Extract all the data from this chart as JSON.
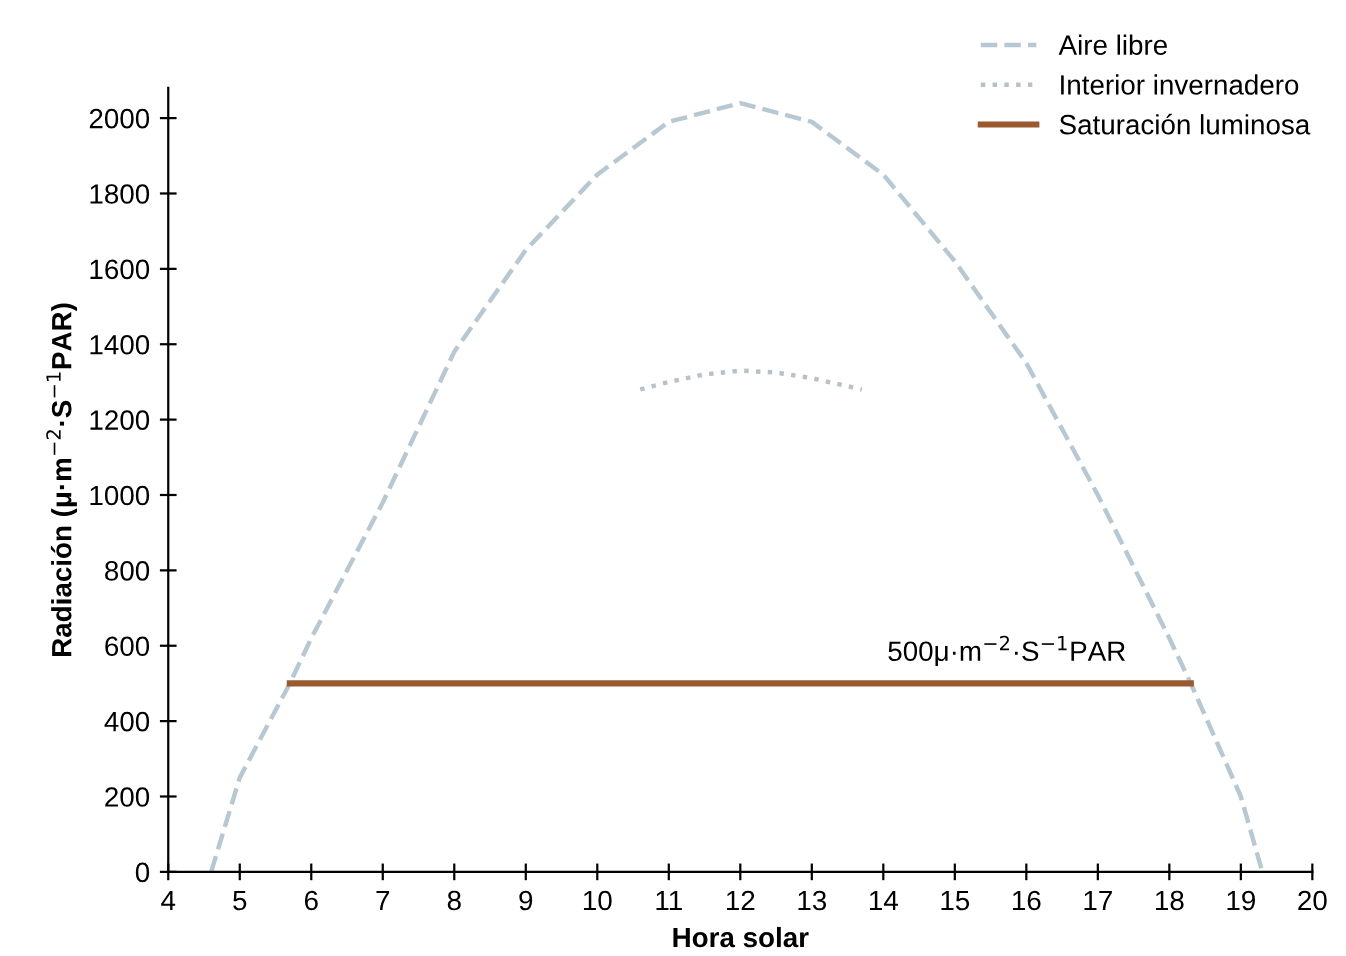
{
  "chart_data": {
    "type": "line",
    "xlabel": "Hora solar",
    "ylabel": "Radiación (μ·m$^{−2}$·S$^{−1}$PAR)",
    "xlim": [
      4,
      20
    ],
    "xticks": [
      4,
      5,
      6,
      7,
      8,
      9,
      10,
      11,
      12,
      13,
      14,
      15,
      16,
      17,
      18,
      19,
      20
    ],
    "ylim": [
      0,
      2080
    ],
    "yticks": [
      0,
      200,
      400,
      600,
      800,
      1000,
      1200,
      1400,
      1600,
      1800,
      2000
    ],
    "grid": false,
    "legend": "top right",
    "marker": "none",
    "series": [
      {
        "name": "Aire libre",
        "color": "#b8c8d2",
        "line_style": "dashed",
        "x": [
          4.6,
          5,
          5.7,
          6,
          7,
          8,
          9,
          10,
          11,
          12,
          13,
          14,
          15,
          16,
          17,
          18,
          18.3,
          19,
          19.3
        ],
        "values": [
          0,
          250,
          500,
          620,
          980,
          1380,
          1650,
          1850,
          1990,
          2040,
          1990,
          1850,
          1620,
          1350,
          1000,
          620,
          500,
          200,
          0
        ]
      },
      {
        "name": "Interior invernadero",
        "color": "#b8c0c8",
        "line_style": "dotted",
        "x": [
          10.6,
          11,
          11.5,
          12,
          12.5,
          13,
          13.7
        ],
        "values": [
          1280,
          1300,
          1320,
          1330,
          1325,
          1310,
          1280
        ]
      },
      {
        "name": "Saturación luminosa",
        "color": "#9a5a30",
        "line_style": "solid",
        "x": [
          5.7,
          18.3
        ],
        "values": [
          500,
          500
        ]
      }
    ],
    "annotations": [
      {
        "text": "500μ·m$^{−2}$·S$^{−1}$PAR",
        "x": 17.4,
        "y": 500
      }
    ]
  }
}
